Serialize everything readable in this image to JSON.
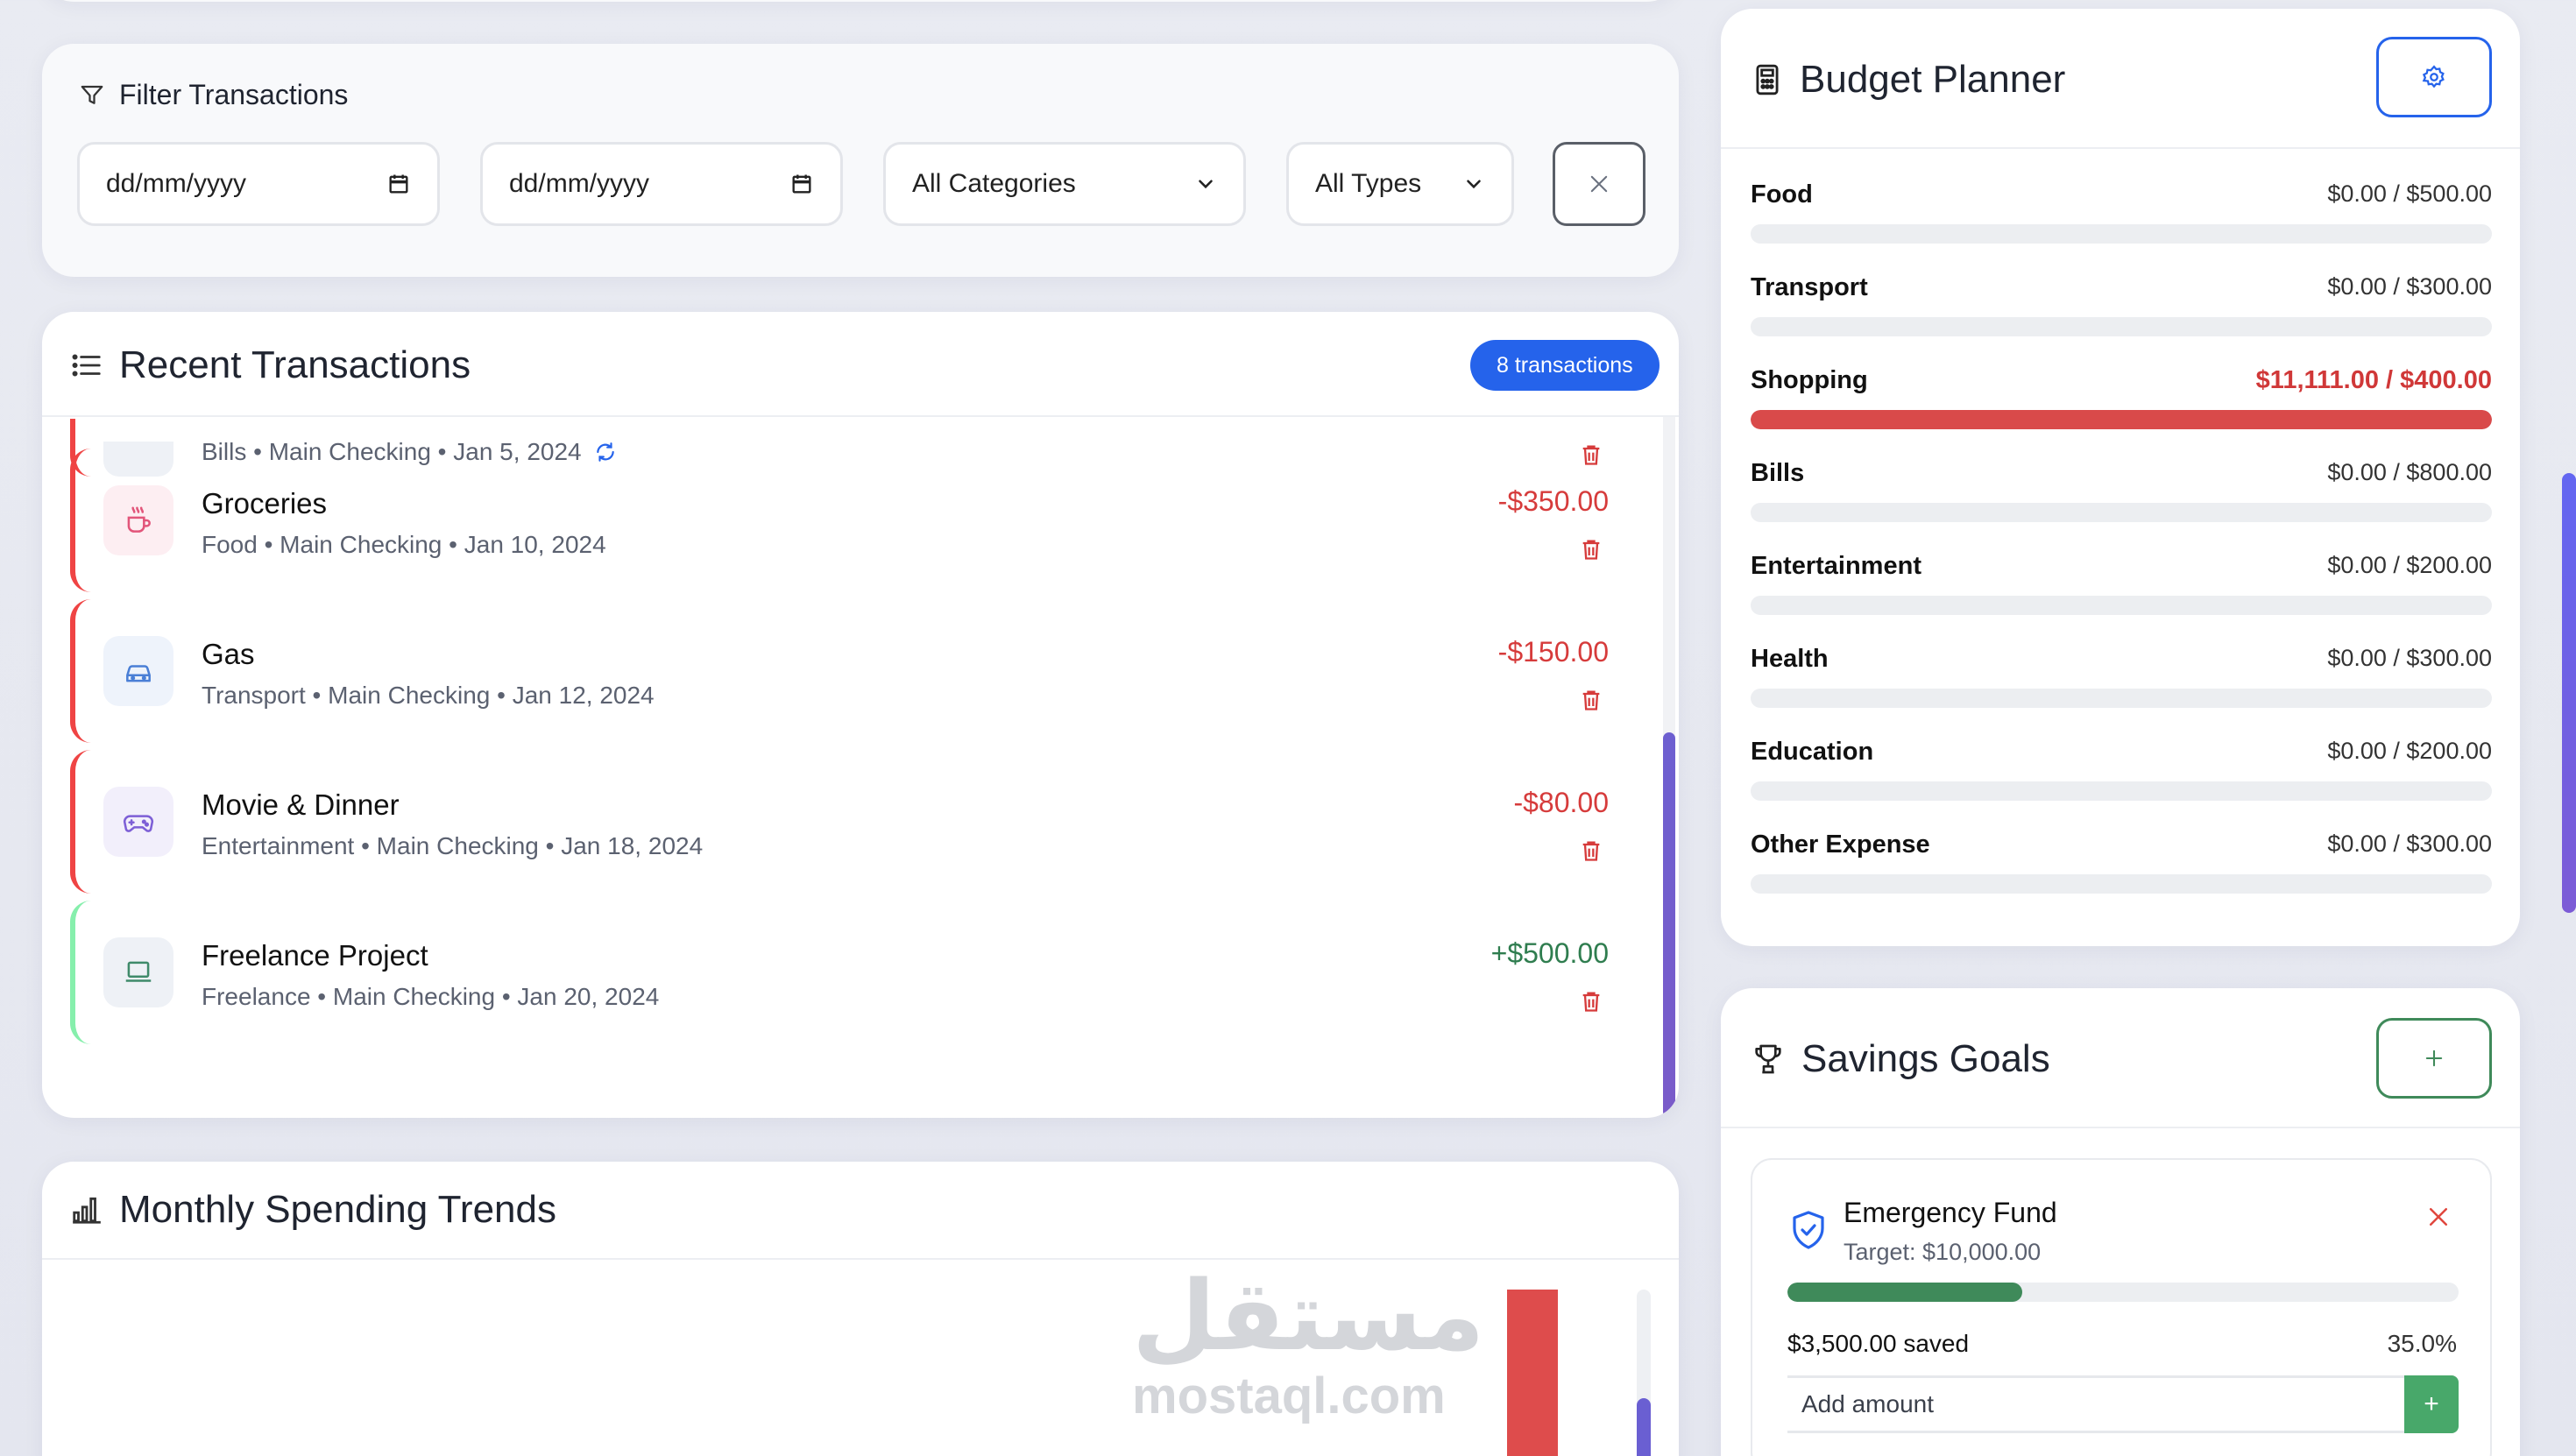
{
  "filter": {
    "title": "Filter Transactions",
    "date_from": "dd/mm/yyyy",
    "date_to": "dd/mm/yyyy",
    "category": "All Categories",
    "type": "All Types"
  },
  "transactions": {
    "title": "Recent Transactions",
    "badge": "8 transactions",
    "items": [
      {
        "name": "",
        "meta": "Bills • Main Checking • Jan 5, 2024",
        "amount": "",
        "kind": "expense",
        "icon": "bills-icon",
        "recurring": true
      },
      {
        "name": "Groceries",
        "meta": "Food • Main Checking • Jan 10, 2024",
        "amount": "-$350.00",
        "kind": "expense",
        "icon": "coffee-cup-icon"
      },
      {
        "name": "Gas",
        "meta": "Transport • Main Checking • Jan 12, 2024",
        "amount": "-$150.00",
        "kind": "expense",
        "icon": "car-icon"
      },
      {
        "name": "Movie & Dinner",
        "meta": "Entertainment • Main Checking • Jan 18, 2024",
        "amount": "-$80.00",
        "kind": "expense",
        "icon": "gamepad-icon"
      },
      {
        "name": "Freelance Project",
        "meta": "Freelance • Main Checking • Jan 20, 2024",
        "amount": "+$500.00",
        "kind": "income",
        "icon": "laptop-icon"
      }
    ]
  },
  "trends": {
    "title": "Monthly Spending Trends"
  },
  "watermark": {
    "arabic": "مستقل",
    "latin": "mostaql.com"
  },
  "budget": {
    "title": "Budget Planner",
    "categories": [
      {
        "name": "Food",
        "value": "$0.00 / $500.00",
        "fill_percent": 0,
        "over": false
      },
      {
        "name": "Transport",
        "value": "$0.00 / $300.00",
        "fill_percent": 0,
        "over": false
      },
      {
        "name": "Shopping",
        "value": "$11,111.00 / $400.00",
        "fill_percent": 100,
        "over": true
      },
      {
        "name": "Bills",
        "value": "$0.00 / $800.00",
        "fill_percent": 0,
        "over": false
      },
      {
        "name": "Entertainment",
        "value": "$0.00 / $200.00",
        "fill_percent": 0,
        "over": false
      },
      {
        "name": "Health",
        "value": "$0.00 / $300.00",
        "fill_percent": 0,
        "over": false
      },
      {
        "name": "Education",
        "value": "$0.00 / $200.00",
        "fill_percent": 0,
        "over": false
      },
      {
        "name": "Other Expense",
        "value": "$0.00 / $300.00",
        "fill_percent": 0,
        "over": false
      }
    ]
  },
  "savings": {
    "title": "Savings Goals",
    "goal": {
      "name": "Emergency Fund",
      "target": "Target: $10,000.00",
      "saved": "$3,500.00 saved",
      "percent_label": "35.0%",
      "progress_percent": 35,
      "add_placeholder": "Add amount",
      "add_button": "+"
    }
  },
  "colors": {
    "accent": "#2563eb",
    "expense": "#d63b3b",
    "income": "#2f7d4f",
    "over_budget": "#d94a4a",
    "savings_progress": "#3f8a5a"
  }
}
